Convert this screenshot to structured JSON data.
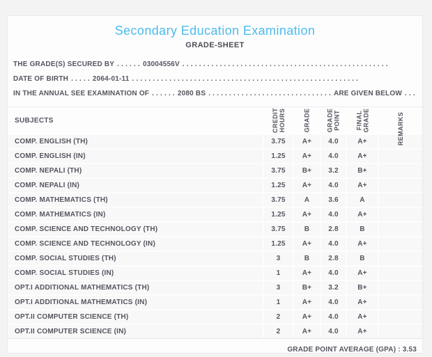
{
  "page": {
    "title": "Secondary Education Examination",
    "subtitle": "GRADE-SHEET"
  },
  "info_lines": [
    {
      "label": "THE GRADE(S) SECURED BY",
      "dots_before": ". . . . . .",
      "value": "03004556V",
      "dots_after": ". . . . . . . . . . . . . . . . . . . . . . . . . . . . . . . . . . . . . . . . . . . . . . . . . ."
    },
    {
      "label": "DATE OF BIRTH",
      "dots_before": ". . . . .",
      "value": "2064-01-11",
      "dots_after": ". . . . . . . . . . . . . . . . . . . . . . . . . . . . . . . . . . . . . . . . . . . . . . . . . . . . . . ."
    },
    {
      "label": "IN THE ANNUAL SEE EXAMINATION OF",
      "dots_before": ". . . . . .",
      "value": "2080 BS",
      "dots_after": ". . . . . . . . . . . . . . . . . . . . . . . . . . . . . .",
      "suffix": "ARE GIVEN BELOW",
      "suffix_dots": ". . ."
    }
  ],
  "table": {
    "headers": {
      "subjects": "SUBJECTS",
      "credit_hours": "CREDIT\nHOURS",
      "grade": "GRADE",
      "grade_point": "GRADE\nPOINT",
      "final_grade": "FINAL\nGRADE",
      "remarks": "REMARKS"
    },
    "rows": [
      {
        "subject": "COMP. ENGLISH (TH)",
        "credit_hours": "3.75",
        "grade": "A+",
        "grade_point": "4.0",
        "final_grade": "A+",
        "remarks": ""
      },
      {
        "subject": "COMP. ENGLISH (IN)",
        "credit_hours": "1.25",
        "grade": "A+",
        "grade_point": "4.0",
        "final_grade": "A+",
        "remarks": ""
      },
      {
        "subject": "COMP. NEPALI (TH)",
        "credit_hours": "3.75",
        "grade": "B+",
        "grade_point": "3.2",
        "final_grade": "B+",
        "remarks": ""
      },
      {
        "subject": "COMP. NEPALI (IN)",
        "credit_hours": "1.25",
        "grade": "A+",
        "grade_point": "4.0",
        "final_grade": "A+",
        "remarks": ""
      },
      {
        "subject": "COMP. MATHEMATICS (TH)",
        "credit_hours": "3.75",
        "grade": "A",
        "grade_point": "3.6",
        "final_grade": "A",
        "remarks": ""
      },
      {
        "subject": "COMP. MATHEMATICS (IN)",
        "credit_hours": "1.25",
        "grade": "A+",
        "grade_point": "4.0",
        "final_grade": "A+",
        "remarks": ""
      },
      {
        "subject": "COMP. SCIENCE AND TECHNOLOGY (TH)",
        "credit_hours": "3.75",
        "grade": "B",
        "grade_point": "2.8",
        "final_grade": "B",
        "remarks": ""
      },
      {
        "subject": "COMP. SCIENCE AND TECHNOLOGY (IN)",
        "credit_hours": "1.25",
        "grade": "A+",
        "grade_point": "4.0",
        "final_grade": "A+",
        "remarks": ""
      },
      {
        "subject": "COMP. SOCIAL STUDIES (TH)",
        "credit_hours": "3",
        "grade": "B",
        "grade_point": "2.8",
        "final_grade": "B",
        "remarks": ""
      },
      {
        "subject": "COMP. SOCIAL STUDIES (IN)",
        "credit_hours": "1",
        "grade": "A+",
        "grade_point": "4.0",
        "final_grade": "A+",
        "remarks": ""
      },
      {
        "subject": "OPT.I ADDITIONAL MATHEMATICS (TH)",
        "credit_hours": "3",
        "grade": "B+",
        "grade_point": "3.2",
        "final_grade": "B+",
        "remarks": ""
      },
      {
        "subject": "OPT.I ADDITIONAL MATHEMATICS (IN)",
        "credit_hours": "1",
        "grade": "A+",
        "grade_point": "4.0",
        "final_grade": "A+",
        "remarks": ""
      },
      {
        "subject": "OPT.II COMPUTER SCIENCE (TH)",
        "credit_hours": "2",
        "grade": "A+",
        "grade_point": "4.0",
        "final_grade": "A+",
        "remarks": ""
      },
      {
        "subject": "OPT.II COMPUTER SCIENCE (IN)",
        "credit_hours": "2",
        "grade": "A+",
        "grade_point": "4.0",
        "final_grade": "A+",
        "remarks": ""
      }
    ]
  },
  "footer": {
    "gpa_text": "GRADE POINT AVERAGE (GPA) : 3.53"
  },
  "colors": {
    "title_accent": "#4dbbea",
    "text": "#54555e",
    "row_background": "#f8f8f9",
    "card_background": "#fdfdfe",
    "page_background": "#f3f3f4"
  }
}
